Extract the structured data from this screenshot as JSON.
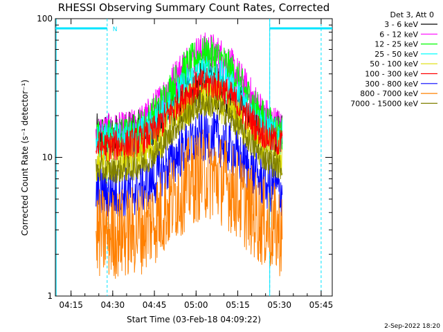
{
  "chart_data": {
    "type": "line",
    "title": "RHESSI Observing Summary Count Rates, Corrected",
    "xlabel": "Start Time (03-Feb-18 04:09:22)",
    "ylabel": "Corrected Count Rate (s⁻¹ detector⁻¹)",
    "yscale": "log",
    "ylim": [
      1,
      100
    ],
    "xlim": [
      "04:09:22",
      "05:49:00"
    ],
    "x_ticks": [
      "04:15",
      "04:30",
      "04:45",
      "05:00",
      "05:15",
      "05:30",
      "05:45"
    ],
    "y_ticks": [
      "1",
      "10",
      "100"
    ],
    "legend_title": "Det 3, Att 0",
    "legend_position": "outside-right",
    "data_start": "04:24:00",
    "data_end": "05:31:00",
    "series": [
      {
        "name": "3 - 6 keV",
        "color": "#000000",
        "baseline": 14,
        "peak": 33,
        "noise": 0.18
      },
      {
        "name": "6 - 12 keV",
        "color": "#ff00ff",
        "baseline": 15,
        "peak": 58,
        "noise": 0.15
      },
      {
        "name": "12 - 25 keV",
        "color": "#00ff00",
        "baseline": 14,
        "peak": 55,
        "noise": 0.14
      },
      {
        "name": "25 - 50 keV",
        "color": "#00ffff",
        "baseline": 13,
        "peak": 40,
        "noise": 0.14
      },
      {
        "name": "50 - 100 keV",
        "color": "#dddd00",
        "baseline": 9.5,
        "peak": 27,
        "noise": 0.16
      },
      {
        "name": "100 - 300 keV",
        "color": "#ff0000",
        "baseline": 12,
        "peak": 34,
        "noise": 0.12
      },
      {
        "name": "300 - 800 keV",
        "color": "#0000ff",
        "baseline": 5.5,
        "peak": 14,
        "noise": 0.2
      },
      {
        "name": "800 - 7000 keV",
        "color": "#ff8000",
        "baseline": 2.8,
        "peak": 7.5,
        "noise": 0.35
      },
      {
        "name": "7000 - 15000 keV",
        "color": "#808000",
        "baseline": 8,
        "peak": 24,
        "noise": 0.1
      }
    ],
    "event_markers": {
      "night_intervals": [
        [
          "04:09:22",
          "04:28:00"
        ],
        [
          "05:26:30",
          "05:49:00"
        ]
      ],
      "dashed_lines": [
        "04:28:00",
        "05:26:30",
        "05:45:00"
      ],
      "solid_lines": [
        "04:09:40",
        "05:26:30"
      ],
      "night_label": "N",
      "bar_color": "#00e5ff"
    }
  },
  "footer": {
    "date_stamp": "2-Sep-2022 18:20"
  }
}
